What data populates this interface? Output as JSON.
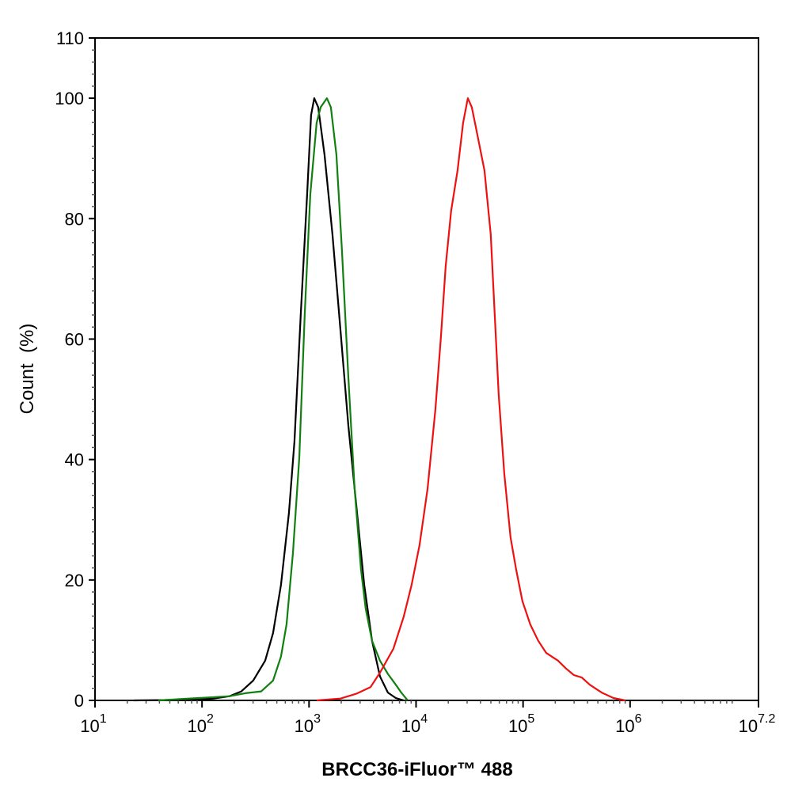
{
  "chart_data": {
    "type": "line",
    "title": "",
    "xlabel": "BRCC36-iFluor™ 488",
    "ylabel": "Count  (%)",
    "x_scale": "log",
    "xlim": [
      10,
      15848932
    ],
    "ylim": [
      0,
      110
    ],
    "x_ticks": [
      {
        "base": "10",
        "exp": "1",
        "value": 10
      },
      {
        "base": "10",
        "exp": "2",
        "value": 100
      },
      {
        "base": "10",
        "exp": "3",
        "value": 1000
      },
      {
        "base": "10",
        "exp": "4",
        "value": 10000
      },
      {
        "base": "10",
        "exp": "5",
        "value": 100000
      },
      {
        "base": "10",
        "exp": "6",
        "value": 1000000
      },
      {
        "base": "10",
        "exp": "7.2",
        "value": 15848932
      }
    ],
    "y_ticks": [
      "0",
      "20",
      "40",
      "60",
      "80",
      "100",
      "110"
    ],
    "grid": false,
    "legend": "none",
    "series": [
      {
        "color": "#000000",
        "x": [
          23,
          77,
          128,
          181,
          233,
          301,
          389,
          461,
          547,
          649,
          731,
          838,
          960,
          1045,
          1119,
          1219,
          1397,
          1656,
          1965,
          2330,
          2762,
          3275,
          3882,
          4603,
          5458,
          6471,
          7674
        ],
        "y": [
          0,
          0.1,
          0.3,
          0.7,
          1.5,
          3.3,
          6.6,
          11.2,
          19.2,
          31.1,
          43.0,
          64.2,
          84.0,
          97.2,
          100,
          98.5,
          90.6,
          77.4,
          61.5,
          45.6,
          32.4,
          19.2,
          9.9,
          4.0,
          1.3,
          0.4,
          0
        ]
      },
      {
        "color": "#118011",
        "x": [
          39,
          181,
          254,
          357,
          461,
          547,
          616,
          707,
          810,
          912,
          1028,
          1178,
          1283,
          1469,
          1600,
          1803,
          2031,
          2330,
          2668,
          3056,
          3386,
          3882,
          4603,
          5458,
          6471,
          7278,
          8356
        ],
        "y": [
          0,
          0.7,
          1.2,
          1.5,
          3.3,
          7.3,
          12.6,
          24.5,
          40.3,
          64.2,
          84.0,
          95.9,
          98.5,
          100,
          98.5,
          90.6,
          74.7,
          53.6,
          35.1,
          21.8,
          15.2,
          9.9,
          6.6,
          4.4,
          2.6,
          1.3,
          0
        ]
      },
      {
        "color": "#ee1111",
        "x": [
          1178,
          1965,
          2762,
          3750,
          4603,
          6142,
          7674,
          9097,
          10790,
          12800,
          15150,
          17060,
          18910,
          21290,
          24420,
          27500,
          30460,
          33190,
          36730,
          43550,
          49900,
          54330,
          59160,
          66680,
          76380,
          86060,
          98620,
          116900,
          138700,
          164400,
          212300,
          251800,
          298500,
          354000,
          419800,
          542000,
          699500,
          903500
        ],
        "y": [
          0,
          0.3,
          1.1,
          2.2,
          4.6,
          8.6,
          13.9,
          19.2,
          25.8,
          35.1,
          48.3,
          60.2,
          72.1,
          81.3,
          88.0,
          95.9,
          100,
          98.5,
          94.6,
          88.0,
          77.4,
          64.2,
          50.9,
          37.7,
          27.1,
          21.8,
          16.5,
          12.6,
          9.9,
          7.9,
          6.6,
          5.3,
          4.2,
          3.8,
          2.6,
          1.3,
          0.4,
          0
        ]
      }
    ]
  }
}
